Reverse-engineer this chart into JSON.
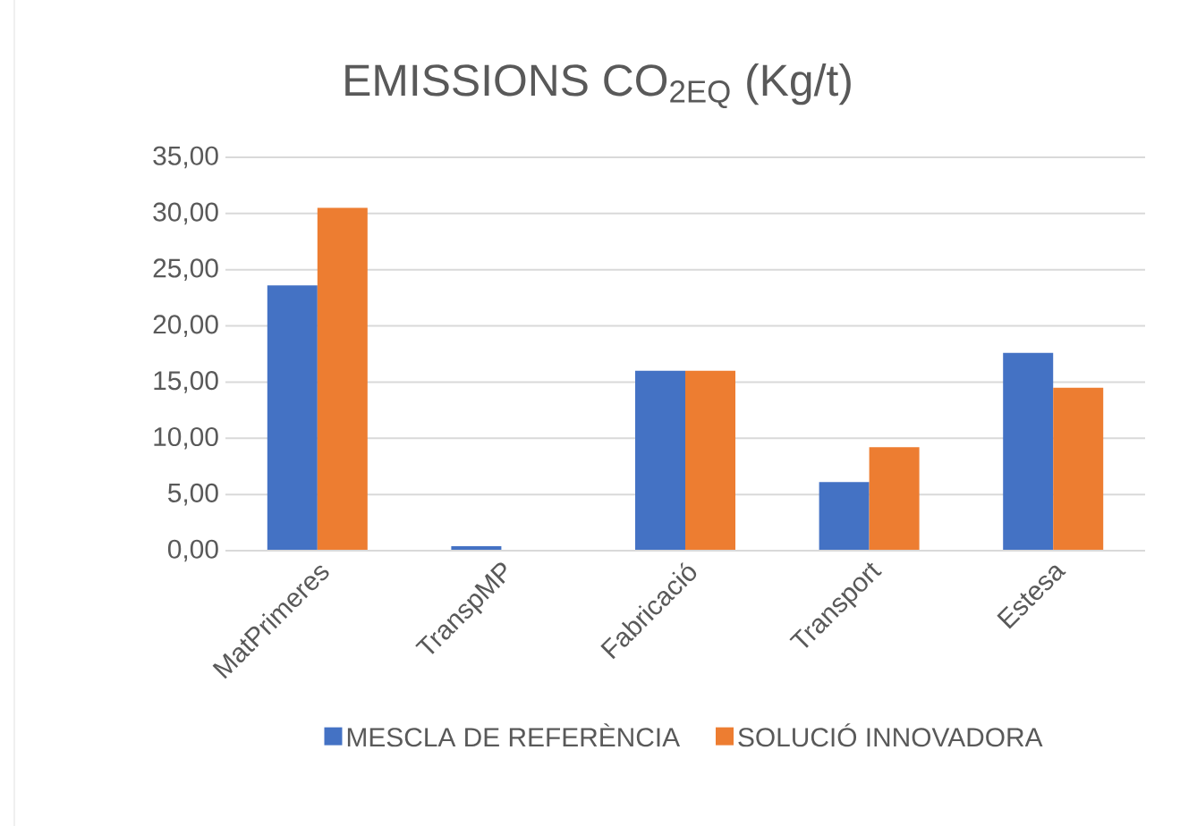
{
  "chart_data": {
    "type": "bar",
    "title": "EMISSIONS CO$_{2EQ}$ (Kg/t)",
    "categories": [
      "MatPrimeres",
      "TranspMP",
      "Fabricació",
      "Transport",
      "Estesa"
    ],
    "series": [
      {
        "name": "MESCLA DE REFERÈNCIA",
        "color": "#4472c4",
        "values": [
          23.6,
          0.4,
          16.0,
          6.1,
          17.6
        ]
      },
      {
        "name": "SOLUCIÓ INNOVADORA",
        "color": "#ed7d31",
        "values": [
          30.5,
          0,
          16.0,
          9.2,
          14.5
        ]
      }
    ],
    "ylim": [
      0,
      35
    ],
    "yticks": [
      {
        "value": 0,
        "label": "0,00"
      },
      {
        "value": 5,
        "label": "5,00"
      },
      {
        "value": 10,
        "label": "10,00"
      },
      {
        "value": 15,
        "label": "15,00"
      },
      {
        "value": 20,
        "label": "20,00"
      },
      {
        "value": 25,
        "label": "25,00"
      },
      {
        "value": 30,
        "label": "30,00"
      },
      {
        "value": 35,
        "label": "35,00"
      }
    ],
    "grid": "y",
    "legend": "bottom"
  }
}
